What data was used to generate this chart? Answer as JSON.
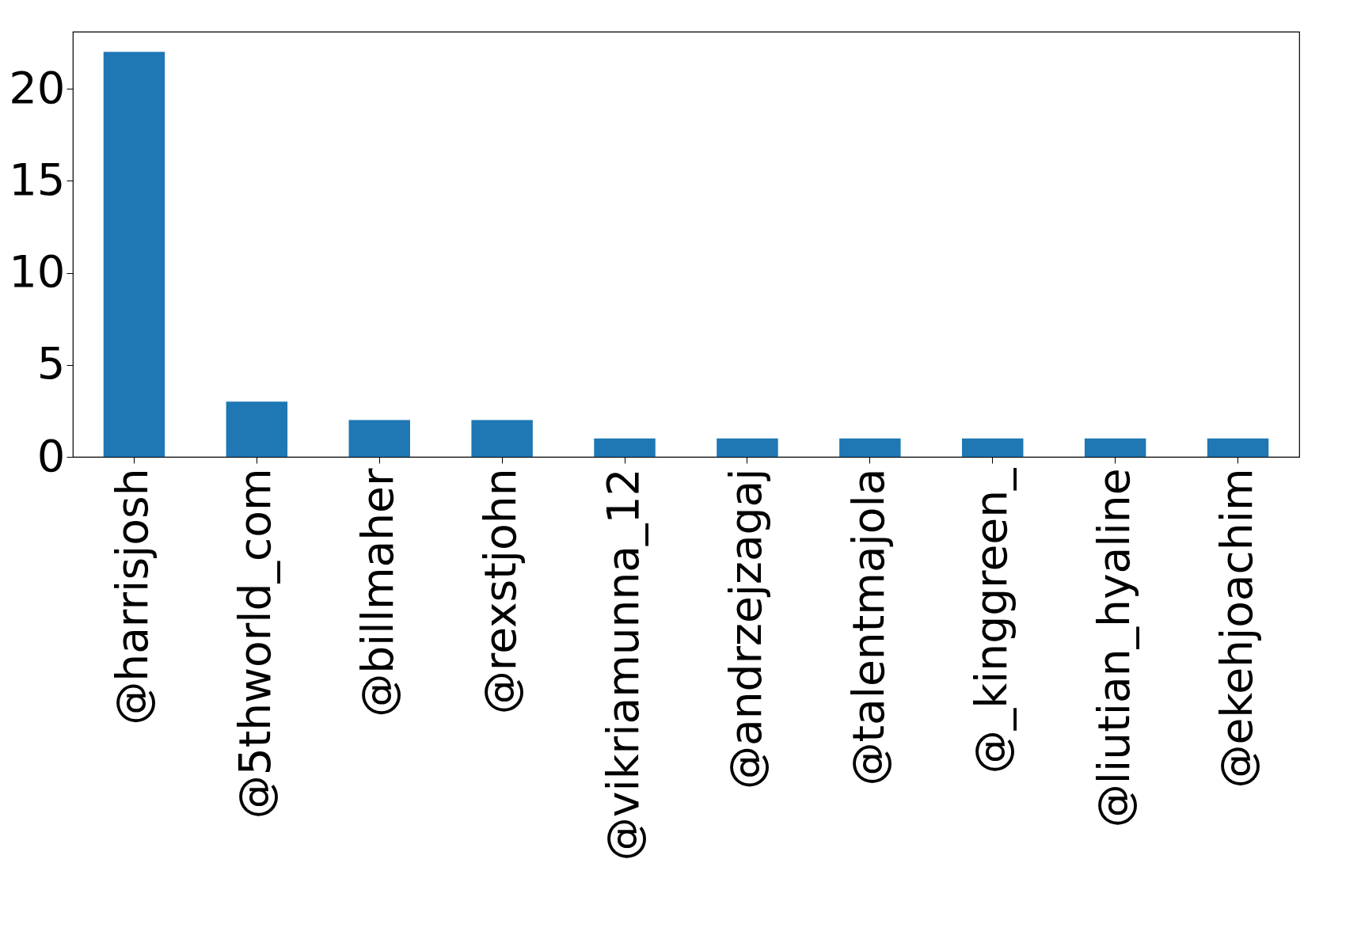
{
  "chart_data": {
    "type": "bar",
    "categories": [
      "@harrisjosh",
      "@5thworld_com",
      "@billmaher",
      "@rexstjohn",
      "@vikriamunna_12",
      "@andrzejzagaj",
      "@talentmajola",
      "@_kinggreen_",
      "@liutian_hyaline",
      "@ekehjoachim"
    ],
    "values": [
      22,
      3,
      2,
      2,
      1,
      1,
      1,
      1,
      1,
      1
    ],
    "color": "#1f77b4",
    "ylim": [
      0,
      23.1
    ],
    "yticks": [
      0,
      5,
      10,
      15,
      20
    ],
    "grid": false
  }
}
